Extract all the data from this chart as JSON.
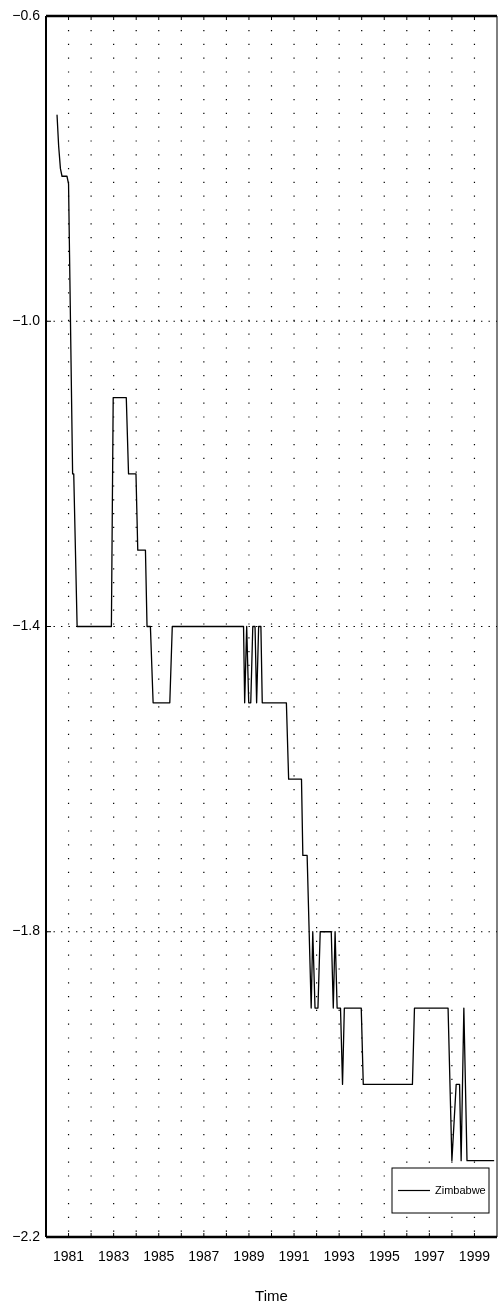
{
  "chart_data": {
    "type": "line",
    "xlabel": "Time",
    "x": [
      1980.49,
      1980.56,
      1980.64,
      1980.71,
      1980.93,
      1981.0,
      1981.18,
      1981.23,
      1981.38,
      1982.9,
      1982.98,
      1983.56,
      1983.66,
      1983.99,
      1984.07,
      1984.41,
      1984.48,
      1984.63,
      1984.75,
      1985.49,
      1985.6,
      1988.76,
      1988.81,
      1988.9,
      1988.99,
      1989.08,
      1989.17,
      1989.27,
      1989.34,
      1989.43,
      1989.53,
      1989.59,
      1990.66,
      1990.76,
      1991.33,
      1991.39,
      1991.58,
      1991.76,
      1991.83,
      1991.93,
      1992.06,
      1992.16,
      1992.65,
      1992.74,
      1992.82,
      1992.91,
      1993.06,
      1993.15,
      1993.23,
      1993.98,
      1994.07,
      1996.25,
      1996.34,
      1997.83,
      1998.0,
      1998.19,
      1998.34,
      1998.41,
      1998.53,
      1998.67,
      1999.85
    ],
    "series": [
      {
        "name": "Zimbabwe",
        "color": "#000000",
        "values": [
          -0.73,
          -0.77,
          -0.8,
          -0.81,
          -0.81,
          -0.82,
          -1.2,
          -1.2,
          -1.4,
          -1.4,
          -1.1,
          -1.1,
          -1.2,
          -1.2,
          -1.3,
          -1.3,
          -1.4,
          -1.4,
          -1.5,
          -1.5,
          -1.4,
          -1.4,
          -1.5,
          -1.4,
          -1.5,
          -1.5,
          -1.4,
          -1.4,
          -1.5,
          -1.4,
          -1.4,
          -1.5,
          -1.5,
          -1.6,
          -1.6,
          -1.7,
          -1.7,
          -1.9,
          -1.8,
          -1.9,
          -1.9,
          -1.8,
          -1.8,
          -1.9,
          -1.8,
          -1.9,
          -1.9,
          -2.0,
          -1.9,
          -1.9,
          -2.0,
          -2.0,
          -1.9,
          -1.9,
          -2.1,
          -2.0,
          -2.0,
          -2.1,
          -1.9,
          -2.1,
          -2.1
        ]
      }
    ],
    "xlim": [
      1980,
      2000
    ],
    "ylim": [
      -2.2,
      -0.6
    ],
    "xticks": [
      1981,
      {
        "value": 1982,
        "label": null
      },
      1983,
      {
        "value": 1984,
        "label": null
      },
      1985,
      {
        "value": 1986,
        "label": null
      },
      1987,
      {
        "value": 1988,
        "label": null
      },
      1989,
      {
        "value": 1990,
        "label": null
      },
      1991,
      {
        "value": 1992,
        "label": null
      },
      1993,
      {
        "value": 1994,
        "label": null
      },
      1995,
      {
        "value": 1996,
        "label": null
      },
      1997,
      {
        "value": 1998,
        "label": null
      },
      1999
    ],
    "yticks": [
      -2.2,
      -1.8,
      -1.4,
      {
        "value": -1.0,
        "label": "−1.0"
      },
      -0.6
    ],
    "grid": true,
    "legend": "bottom right",
    "line_style": "solid"
  }
}
